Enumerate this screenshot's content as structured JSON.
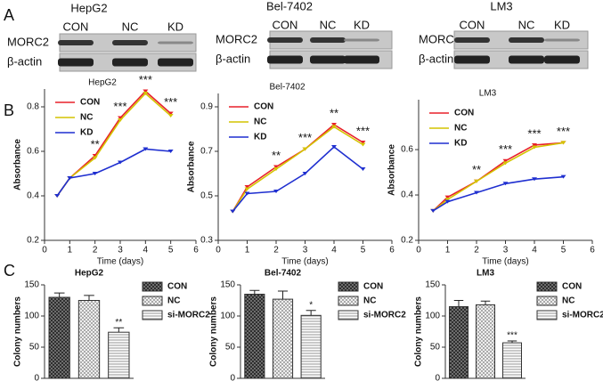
{
  "panels": [
    "A",
    "B",
    "C"
  ],
  "blots": [
    {
      "title": "HepG2",
      "lanes": [
        "CON",
        "NC",
        "KD"
      ],
      "rows": [
        "MORC2",
        "β-actin"
      ]
    },
    {
      "title": "Bel-7402",
      "lanes": [
        "CON",
        "NC",
        "KD"
      ],
      "rows": [
        "MORC2",
        "β-actin"
      ]
    },
    {
      "title": "LM3",
      "lanes": [
        "CON",
        "NC",
        "KD"
      ],
      "rows": [
        "MORC2",
        "β-actin"
      ]
    }
  ],
  "chart_data": [
    {
      "type": "line",
      "title": "HepG2",
      "x_label": "Time (days)",
      "y_label": "Absorbance",
      "x": [
        0.5,
        1,
        2,
        3,
        4,
        5
      ],
      "xlim": [
        0,
        6
      ],
      "xticks": [
        0,
        1,
        2,
        3,
        4,
        5,
        6
      ],
      "ylim": [
        0.2,
        0.88
      ],
      "yticks": [
        0.2,
        0.4,
        0.6,
        0.8
      ],
      "series": [
        {
          "name": "CON",
          "color": "#e8202a",
          "values": [
            0.4,
            0.48,
            0.58,
            0.75,
            0.87,
            0.77
          ]
        },
        {
          "name": "NC",
          "color": "#d4c400",
          "values": [
            0.4,
            0.48,
            0.57,
            0.74,
            0.86,
            0.76
          ]
        },
        {
          "name": "KD",
          "color": "#1f2fd0",
          "values": [
            0.4,
            0.48,
            0.5,
            0.55,
            0.61,
            0.6
          ]
        }
      ],
      "annotations": [
        {
          "x": 2,
          "text": "**"
        },
        {
          "x": 3,
          "text": "***"
        },
        {
          "x": 4,
          "text": "***"
        },
        {
          "x": 5,
          "text": "***"
        }
      ]
    },
    {
      "type": "line",
      "title": "Bel-7402",
      "x_label": "Time (days)",
      "y_label": "Absorbance",
      "x": [
        0.5,
        1,
        2,
        3,
        4,
        5
      ],
      "xlim": [
        0,
        6
      ],
      "xticks": [
        0,
        1,
        2,
        3,
        4,
        5,
        6
      ],
      "ylim": [
        0.3,
        0.96
      ],
      "yticks": [
        0.3,
        0.5,
        0.7,
        0.9
      ],
      "series": [
        {
          "name": "CON",
          "color": "#e8202a",
          "values": [
            0.43,
            0.54,
            0.63,
            0.71,
            0.82,
            0.74
          ]
        },
        {
          "name": "NC",
          "color": "#d4c400",
          "values": [
            0.43,
            0.53,
            0.62,
            0.71,
            0.81,
            0.73
          ]
        },
        {
          "name": "KD",
          "color": "#1f2fd0",
          "values": [
            0.43,
            0.51,
            0.52,
            0.6,
            0.72,
            0.62
          ]
        }
      ],
      "annotations": [
        {
          "x": 2,
          "text": "**"
        },
        {
          "x": 3,
          "text": "***"
        },
        {
          "x": 4,
          "text": "**"
        },
        {
          "x": 5,
          "text": "***"
        }
      ]
    },
    {
      "type": "line",
      "title": "LM3",
      "x_label": "Time (days)",
      "y_label": "Absorbance",
      "x": [
        0.5,
        1,
        2,
        3,
        4,
        5
      ],
      "xlim": [
        0,
        6
      ],
      "xticks": [
        0,
        1,
        2,
        3,
        4,
        5,
        6
      ],
      "ylim": [
        0.2,
        0.82
      ],
      "yticks": [
        0.2,
        0.4,
        0.6
      ],
      "series": [
        {
          "name": "CON",
          "color": "#e8202a",
          "values": [
            0.33,
            0.39,
            0.46,
            0.55,
            0.62,
            0.63
          ]
        },
        {
          "name": "NC",
          "color": "#d4c400",
          "values": [
            0.33,
            0.38,
            0.46,
            0.54,
            0.61,
            0.63
          ]
        },
        {
          "name": "KD",
          "color": "#1f2fd0",
          "values": [
            0.33,
            0.37,
            0.41,
            0.45,
            0.47,
            0.48
          ]
        }
      ],
      "annotations": [
        {
          "x": 2,
          "text": "**"
        },
        {
          "x": 3,
          "text": "***"
        },
        {
          "x": 4,
          "text": "***"
        },
        {
          "x": 5,
          "text": "***"
        }
      ]
    },
    {
      "type": "bar",
      "title": "HepG2",
      "y_label": "Colony numbers",
      "categories": [
        "CON",
        "NC",
        "si-MORC2"
      ],
      "values": [
        130,
        125,
        74
      ],
      "errors": [
        7,
        8,
        7
      ],
      "fills": [
        "crosshatch",
        "checker",
        "hlines"
      ],
      "ylim": [
        0,
        150
      ],
      "yticks": [
        0,
        50,
        100,
        150
      ],
      "annotations": [
        {
          "category": "si-MORC2",
          "text": "**"
        }
      ]
    },
    {
      "type": "bar",
      "title": "Bel-7402",
      "y_label": "Colony numbers",
      "categories": [
        "CON",
        "NC",
        "si-MORC2"
      ],
      "values": [
        135,
        127,
        101
      ],
      "errors": [
        6,
        13,
        8
      ],
      "fills": [
        "crosshatch",
        "checker",
        "hlines"
      ],
      "ylim": [
        0,
        150
      ],
      "yticks": [
        0,
        50,
        100,
        150
      ],
      "annotations": [
        {
          "category": "si-MORC2",
          "text": "*"
        }
      ]
    },
    {
      "type": "bar",
      "title": "LM3",
      "y_label": "Colony numbers",
      "categories": [
        "CON",
        "NC",
        "si-MORC2"
      ],
      "values": [
        115,
        118,
        57
      ],
      "errors": [
        10,
        6,
        3
      ],
      "fills": [
        "crosshatch",
        "checker",
        "hlines"
      ],
      "ylim": [
        0,
        150
      ],
      "yticks": [
        0,
        50,
        100,
        150
      ],
      "annotations": [
        {
          "category": "si-MORC2",
          "text": "***"
        }
      ]
    }
  ]
}
